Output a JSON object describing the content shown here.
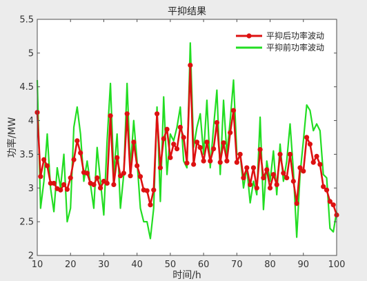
{
  "chart_data": {
    "type": "line",
    "title": "平抑结果",
    "xlabel": "时间/h",
    "ylabel": "功率/MW",
    "xlim": [
      10,
      100
    ],
    "ylim": [
      2,
      5.5
    ],
    "xticks": [
      10,
      20,
      30,
      40,
      50,
      60,
      70,
      80,
      90,
      100
    ],
    "yticks": [
      2,
      2.5,
      3,
      3.5,
      4,
      4.5,
      5,
      5.5
    ],
    "grid": false,
    "legend_position": "top-right",
    "x": [
      10,
      11,
      12,
      13,
      14,
      15,
      16,
      17,
      18,
      19,
      20,
      21,
      22,
      23,
      24,
      25,
      26,
      27,
      28,
      29,
      30,
      31,
      32,
      33,
      34,
      35,
      36,
      37,
      38,
      39,
      40,
      41,
      42,
      43,
      44,
      45,
      46,
      47,
      48,
      49,
      50,
      51,
      52,
      53,
      54,
      55,
      56,
      57,
      58,
      59,
      60,
      61,
      62,
      63,
      64,
      65,
      66,
      67,
      68,
      69,
      70,
      71,
      72,
      73,
      74,
      75,
      76,
      77,
      78,
      79,
      80,
      81,
      82,
      83,
      84,
      85,
      86,
      87,
      88,
      89,
      90,
      91,
      92,
      93,
      94,
      95,
      96,
      97,
      98,
      99,
      100
    ],
    "series": [
      {
        "name": "平抑后功率波动",
        "color": "#dd1111",
        "marker": "circle",
        "values": [
          4.12,
          3.17,
          3.42,
          3.33,
          3.07,
          3.07,
          2.99,
          2.97,
          3.05,
          2.98,
          3.15,
          3.42,
          3.7,
          3.52,
          3.23,
          3.22,
          3.07,
          3.05,
          3.15,
          3.0,
          3.1,
          3.07,
          4.07,
          3.05,
          3.45,
          3.18,
          3.22,
          4.1,
          3.18,
          3.68,
          3.33,
          3.17,
          2.97,
          2.96,
          2.75,
          2.97,
          4.1,
          3.3,
          3.73,
          3.87,
          3.45,
          3.65,
          3.58,
          3.9,
          3.75,
          3.37,
          4.82,
          3.35,
          3.68,
          3.6,
          3.4,
          3.68,
          3.4,
          3.58,
          3.97,
          3.38,
          3.67,
          3.4,
          3.82,
          4.15,
          3.38,
          3.5,
          3.15,
          3.3,
          3.05,
          3.3,
          3.0,
          3.57,
          3.15,
          3.27,
          3.0,
          3.2,
          3.05,
          3.5,
          3.22,
          3.15,
          3.5,
          3.1,
          2.77,
          3.3,
          3.25,
          3.75,
          3.65,
          3.38,
          3.47,
          3.35,
          3.02,
          2.97,
          2.8,
          2.75,
          2.6
        ]
      },
      {
        "name": "平抑前功率波动",
        "color": "#22dd22",
        "marker": "none",
        "values": [
          4.6,
          2.7,
          3.1,
          3.8,
          3.0,
          2.65,
          3.3,
          3.0,
          3.5,
          2.5,
          2.7,
          3.9,
          4.2,
          3.8,
          3.1,
          3.4,
          3.05,
          2.7,
          3.6,
          3.1,
          2.6,
          3.7,
          4.55,
          3.2,
          3.8,
          2.7,
          3.2,
          4.55,
          3.3,
          4.0,
          3.4,
          2.7,
          2.5,
          2.5,
          2.25,
          2.7,
          4.2,
          2.8,
          4.35,
          3.2,
          3.8,
          3.7,
          3.9,
          4.2,
          3.4,
          3.3,
          5.15,
          3.6,
          3.9,
          4.1,
          3.5,
          4.3,
          3.3,
          3.9,
          4.45,
          3.2,
          4.3,
          3.5,
          4.0,
          4.6,
          3.5,
          3.5,
          3.0,
          3.3,
          2.78,
          3.1,
          2.9,
          4.05,
          2.68,
          3.4,
          3.1,
          3.55,
          2.9,
          3.65,
          3.1,
          3.4,
          3.95,
          3.25,
          2.27,
          3.2,
          3.7,
          4.23,
          4.15,
          3.85,
          3.95,
          3.85,
          3.2,
          3.15,
          2.4,
          2.35,
          2.65
        ]
      }
    ]
  }
}
